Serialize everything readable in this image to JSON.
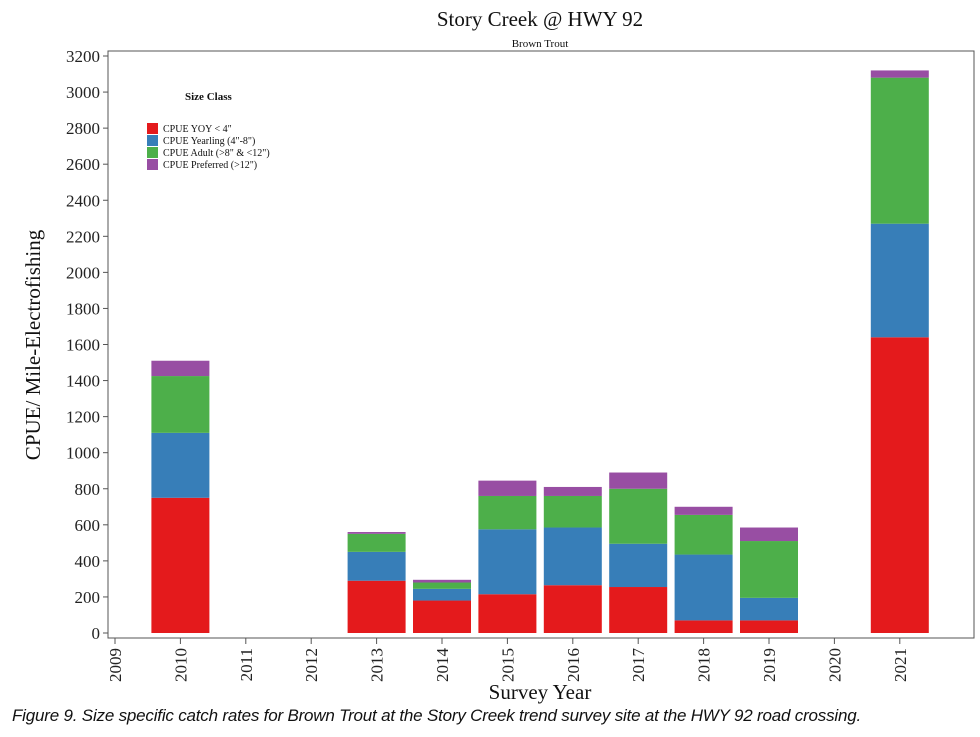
{
  "chart_data": {
    "type": "bar",
    "stacked": true,
    "title": "Story Creek @ HWY 92",
    "subtitle": "Brown Trout",
    "xlabel": "Survey Year",
    "ylabel": "CPUE/ Mile-Electrofishing",
    "ylim": [
      0,
      3200
    ],
    "y_ticks": [
      "0",
      "200",
      "400",
      "600",
      "800",
      "1000",
      "1200",
      "1400",
      "1600",
      "1800",
      "2000",
      "2200",
      "2400",
      "2600",
      "2800",
      "3000",
      "3200"
    ],
    "categories": [
      "2009",
      "2010",
      "2011",
      "2012",
      "2013",
      "2014",
      "2015",
      "2016",
      "2017",
      "2018",
      "2019",
      "2020",
      "2021"
    ],
    "grid": false,
    "legend_title": "Size Class",
    "legend_position": "top-left",
    "series": [
      {
        "name": "CPUE YOY < 4\"",
        "color": "#e41a1c",
        "values": [
          0,
          750,
          0,
          0,
          290,
          180,
          215,
          265,
          255,
          70,
          70,
          0,
          1640
        ]
      },
      {
        "name": "CPUE Yearling (4\"-8\")",
        "color": "#377eb8",
        "values": [
          0,
          360,
          0,
          0,
          160,
          65,
          360,
          320,
          240,
          365,
          125,
          0,
          630
        ]
      },
      {
        "name": "CPUE Adult (>8\" & <12\")",
        "color": "#4daf4a",
        "values": [
          0,
          315,
          0,
          0,
          100,
          35,
          185,
          175,
          305,
          220,
          315,
          0,
          810
        ]
      },
      {
        "name": "CPUE Preferred (>12\")",
        "color": "#984ea3",
        "values": [
          0,
          85,
          0,
          0,
          10,
          15,
          85,
          50,
          90,
          45,
          75,
          0,
          40
        ]
      }
    ]
  },
  "caption": "Figure 9. Size specific catch rates for Brown Trout at the Story Creek trend survey site at the HWY 92 road crossing."
}
